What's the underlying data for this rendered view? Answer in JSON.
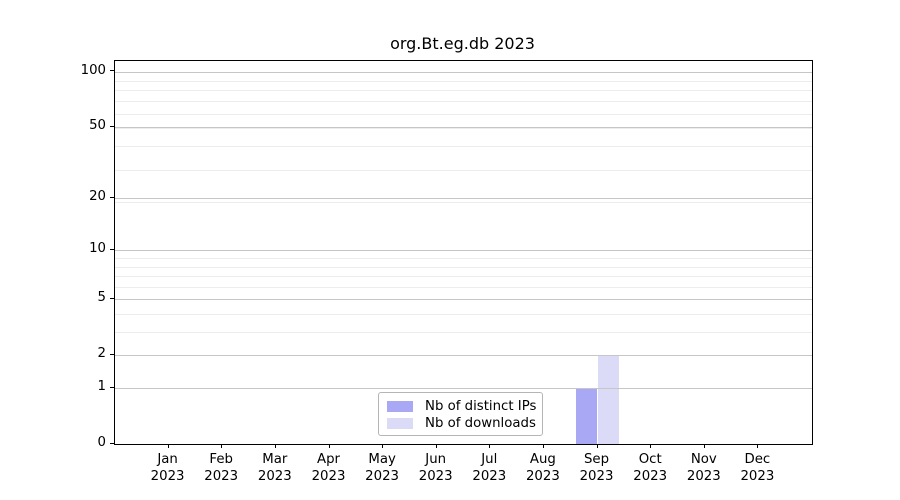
{
  "chart_data": {
    "type": "bar",
    "title": "org.Bt.eg.db 2023",
    "categories": [
      "Jan",
      "Feb",
      "Mar",
      "Apr",
      "May",
      "Jun",
      "Jul",
      "Aug",
      "Sep",
      "Oct",
      "Nov",
      "Dec"
    ],
    "x_year_label": "2023",
    "series": [
      {
        "name": "Nb of distinct IPs",
        "color": "#a8a8f4",
        "values": [
          0,
          0,
          0,
          0,
          0,
          0,
          0,
          0,
          1,
          0,
          0,
          0
        ]
      },
      {
        "name": "Nb of downloads",
        "color": "#dbdbf7",
        "values": [
          0,
          0,
          0,
          0,
          0,
          0,
          0,
          0,
          2,
          0,
          0,
          0
        ]
      }
    ],
    "y_axis": {
      "scale": "log10(value+1)",
      "ticks": [
        0,
        1,
        2,
        5,
        10,
        20,
        50,
        100
      ],
      "max": 114,
      "minor_gridlines_value_plus_1": [
        2,
        3,
        4,
        5,
        6,
        7,
        8,
        9,
        10,
        20,
        30,
        40,
        50,
        60,
        70,
        80,
        90,
        100
      ]
    },
    "legend_position": "bottom center",
    "grid": "horizontal only, drawn over bars",
    "colors": {
      "major_grid": "#c6c6c6",
      "minor_grid": "#ececec",
      "spine": "#000000",
      "text": "#000000",
      "background": "#ffffff"
    }
  }
}
